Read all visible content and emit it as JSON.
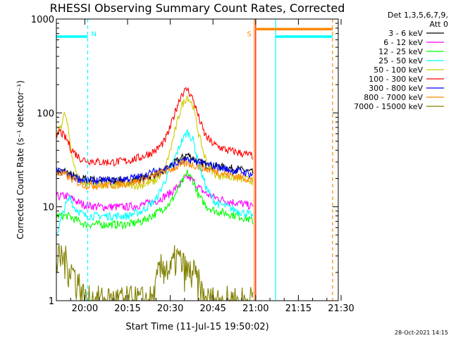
{
  "chart_data": {
    "type": "line",
    "title": "RHESSI Observing Summary Count Rates, Corrected",
    "xlabel": "Start Time (11-Jul-15 19:50:02)",
    "ylabel": "Corrected Count Rate (s⁻¹ detector⁻¹)",
    "yscale": "log",
    "ylim": [
      1,
      1000
    ],
    "xlim_minutes": [
      0,
      99
    ],
    "x_ticks": [
      {
        "m": 10,
        "label": "20:00"
      },
      {
        "m": 25,
        "label": "20:15"
      },
      {
        "m": 40,
        "label": "20:30"
      },
      {
        "m": 55,
        "label": "20:45"
      },
      {
        "m": 70,
        "label": "21:00"
      },
      {
        "m": 85,
        "label": "21:15"
      },
      {
        "m": 100,
        "label": "21:30"
      }
    ],
    "y_ticks": [
      {
        "v": 1,
        "label": "1"
      },
      {
        "v": 10,
        "label": "10"
      },
      {
        "v": 100,
        "label": "100"
      },
      {
        "v": 1000,
        "label": "1000"
      }
    ],
    "legend_header": [
      "Det 1,3,5,6,7,9,",
      "Att 0"
    ],
    "legend_position": "right",
    "series": [
      {
        "name": "3 - 6 keV",
        "color": "#000000",
        "points": [
          [
            0,
            23
          ],
          [
            3,
            24
          ],
          [
            5,
            22
          ],
          [
            8,
            20
          ],
          [
            10,
            20
          ],
          [
            15,
            19
          ],
          [
            20,
            19
          ],
          [
            25,
            19
          ],
          [
            30,
            20
          ],
          [
            35,
            22
          ],
          [
            38,
            24
          ],
          [
            40,
            27
          ],
          [
            42,
            30
          ],
          [
            44,
            33
          ],
          [
            46,
            36
          ],
          [
            48,
            33
          ],
          [
            50,
            30
          ],
          [
            53,
            28
          ],
          [
            56,
            27
          ],
          [
            60,
            26
          ],
          [
            64,
            25
          ],
          [
            67,
            24
          ],
          [
            69,
            23
          ]
        ]
      },
      {
        "name": "6 - 12 keV",
        "color": "#ff00ff",
        "points": [
          [
            0,
            13
          ],
          [
            4,
            13
          ],
          [
            6,
            12
          ],
          [
            8,
            11
          ],
          [
            10,
            10.5
          ],
          [
            15,
            10
          ],
          [
            20,
            10
          ],
          [
            25,
            10
          ],
          [
            30,
            10.5
          ],
          [
            35,
            11.5
          ],
          [
            40,
            14
          ],
          [
            44,
            18
          ],
          [
            46,
            21
          ],
          [
            48,
            19
          ],
          [
            50,
            16
          ],
          [
            53,
            13.5
          ],
          [
            56,
            12.5
          ],
          [
            60,
            11.5
          ],
          [
            64,
            11
          ],
          [
            67,
            10.5
          ],
          [
            69,
            10
          ]
        ]
      },
      {
        "name": "12 - 25 keV",
        "color": "#00ff00",
        "points": [
          [
            0,
            8
          ],
          [
            4,
            8
          ],
          [
            6,
            7.5
          ],
          [
            8,
            7
          ],
          [
            10,
            6.5
          ],
          [
            15,
            6.5
          ],
          [
            20,
            6.5
          ],
          [
            25,
            6.5
          ],
          [
            30,
            7
          ],
          [
            35,
            8.5
          ],
          [
            40,
            11
          ],
          [
            44,
            18
          ],
          [
            46,
            23
          ],
          [
            48,
            19
          ],
          [
            50,
            13
          ],
          [
            53,
            10
          ],
          [
            56,
            9
          ],
          [
            60,
            8.5
          ],
          [
            64,
            8
          ],
          [
            67,
            7.5
          ],
          [
            69,
            7
          ]
        ]
      },
      {
        "name": "25 - 50 keV",
        "color": "#00ffff",
        "points": [
          [
            0,
            5
          ],
          [
            3,
            10
          ],
          [
            5,
            13
          ],
          [
            6,
            10
          ],
          [
            8,
            9
          ],
          [
            10,
            8
          ],
          [
            15,
            8
          ],
          [
            20,
            8
          ],
          [
            25,
            8
          ],
          [
            30,
            9
          ],
          [
            35,
            12
          ],
          [
            40,
            25
          ],
          [
            44,
            50
          ],
          [
            46,
            63
          ],
          [
            48,
            52
          ],
          [
            50,
            28
          ],
          [
            53,
            15
          ],
          [
            56,
            11
          ],
          [
            60,
            10
          ],
          [
            64,
            9
          ],
          [
            67,
            8.5
          ],
          [
            69,
            8
          ]
        ]
      },
      {
        "name": "50 - 100 keV",
        "color": "#cccc00",
        "points": [
          [
            0,
            55
          ],
          [
            2,
            80
          ],
          [
            3,
            100
          ],
          [
            4,
            70
          ],
          [
            5,
            45
          ],
          [
            6,
            30
          ],
          [
            7,
            22
          ],
          [
            8,
            20
          ],
          [
            10,
            18
          ],
          [
            15,
            17
          ],
          [
            20,
            17
          ],
          [
            25,
            17
          ],
          [
            30,
            17
          ],
          [
            35,
            19
          ],
          [
            38,
            25
          ],
          [
            40,
            40
          ],
          [
            42,
            70
          ],
          [
            44,
            120
          ],
          [
            46,
            150
          ],
          [
            48,
            120
          ],
          [
            50,
            60
          ],
          [
            52,
            35
          ],
          [
            54,
            26
          ],
          [
            56,
            22
          ],
          [
            60,
            21
          ],
          [
            64,
            20
          ],
          [
            67,
            19.5
          ],
          [
            69,
            19
          ]
        ]
      },
      {
        "name": "100 - 300 keV",
        "color": "#ff0000",
        "points": [
          [
            0,
            50
          ],
          [
            1,
            65
          ],
          [
            2,
            60
          ],
          [
            3,
            55
          ],
          [
            4,
            50
          ],
          [
            5,
            42
          ],
          [
            7,
            36
          ],
          [
            9,
            32
          ],
          [
            12,
            31
          ],
          [
            15,
            30
          ],
          [
            20,
            30
          ],
          [
            25,
            31
          ],
          [
            30,
            34
          ],
          [
            35,
            40
          ],
          [
            38,
            50
          ],
          [
            40,
            70
          ],
          [
            42,
            110
          ],
          [
            44,
            160
          ],
          [
            46,
            180
          ],
          [
            48,
            140
          ],
          [
            50,
            90
          ],
          [
            52,
            60
          ],
          [
            54,
            50
          ],
          [
            56,
            45
          ],
          [
            60,
            40
          ],
          [
            64,
            38
          ],
          [
            67,
            36
          ],
          [
            69,
            35
          ]
        ]
      },
      {
        "name": "300 - 800 keV",
        "color": "#0000ff",
        "points": [
          [
            0,
            24
          ],
          [
            3,
            23
          ],
          [
            5,
            21
          ],
          [
            8,
            20
          ],
          [
            10,
            19
          ],
          [
            15,
            19
          ],
          [
            20,
            19
          ],
          [
            25,
            20
          ],
          [
            30,
            21
          ],
          [
            35,
            24
          ],
          [
            40,
            27
          ],
          [
            44,
            30
          ],
          [
            46,
            31
          ],
          [
            48,
            31
          ],
          [
            50,
            30
          ],
          [
            53,
            28
          ],
          [
            56,
            27
          ],
          [
            60,
            25
          ],
          [
            64,
            24
          ],
          [
            67,
            23
          ],
          [
            69,
            22
          ]
        ]
      },
      {
        "name": "800 - 7000 keV",
        "color": "#ff8800",
        "points": [
          [
            0,
            23
          ],
          [
            3,
            22
          ],
          [
            5,
            20
          ],
          [
            8,
            18
          ],
          [
            10,
            17
          ],
          [
            15,
            17
          ],
          [
            20,
            17
          ],
          [
            25,
            18
          ],
          [
            30,
            19
          ],
          [
            35,
            22
          ],
          [
            40,
            25
          ],
          [
            44,
            28
          ],
          [
            46,
            29
          ],
          [
            48,
            28
          ],
          [
            50,
            27
          ],
          [
            53,
            25
          ],
          [
            56,
            24
          ],
          [
            60,
            22
          ],
          [
            64,
            21
          ],
          [
            67,
            20
          ],
          [
            69,
            19
          ]
        ]
      },
      {
        "name": "7000 - 15000 keV",
        "color": "#808000",
        "points": [
          [
            0,
            2.5
          ],
          [
            2,
            3
          ],
          [
            4,
            2.5
          ],
          [
            6,
            2
          ],
          [
            8,
            1.5
          ],
          [
            10,
            1
          ],
          [
            15,
            1
          ],
          [
            20,
            1
          ],
          [
            25,
            1
          ],
          [
            30,
            1
          ],
          [
            34,
            1
          ],
          [
            36,
            2
          ],
          [
            38,
            2.5
          ],
          [
            40,
            2
          ],
          [
            42,
            3
          ],
          [
            44,
            2.5
          ],
          [
            46,
            2
          ],
          [
            48,
            2
          ],
          [
            50,
            1.5
          ],
          [
            52,
            1
          ],
          [
            56,
            1
          ],
          [
            60,
            1
          ],
          [
            64,
            1
          ],
          [
            67,
            1
          ],
          [
            69,
            1
          ]
        ]
      }
    ],
    "attenuator_marks": [
      {
        "label": "N",
        "t": 11,
        "color": "#00ffff"
      },
      {
        "label": "S",
        "t": 69.5,
        "color": "#ff8800"
      }
    ],
    "state_bars": [
      {
        "color": "#00ffff",
        "level": 650,
        "segments": [
          [
            0,
            11
          ],
          [
            77,
            97
          ]
        ]
      },
      {
        "color": "#ff8800",
        "level": 780,
        "segments": [
          [
            70,
            97
          ]
        ]
      }
    ],
    "vertical_lines": [
      {
        "t": 11,
        "color": "#00ffff",
        "dashed": true
      },
      {
        "t": 69.5,
        "color": "#ff8800",
        "dashed": false
      },
      {
        "t": 70,
        "color": "#ff0000",
        "dashed": false
      },
      {
        "t": 77,
        "color": "#00ffff",
        "dashed": false
      },
      {
        "t": 97,
        "color": "#ff8800",
        "dashed": true
      }
    ],
    "footer_date": "28-Oct-2021 14:15"
  }
}
